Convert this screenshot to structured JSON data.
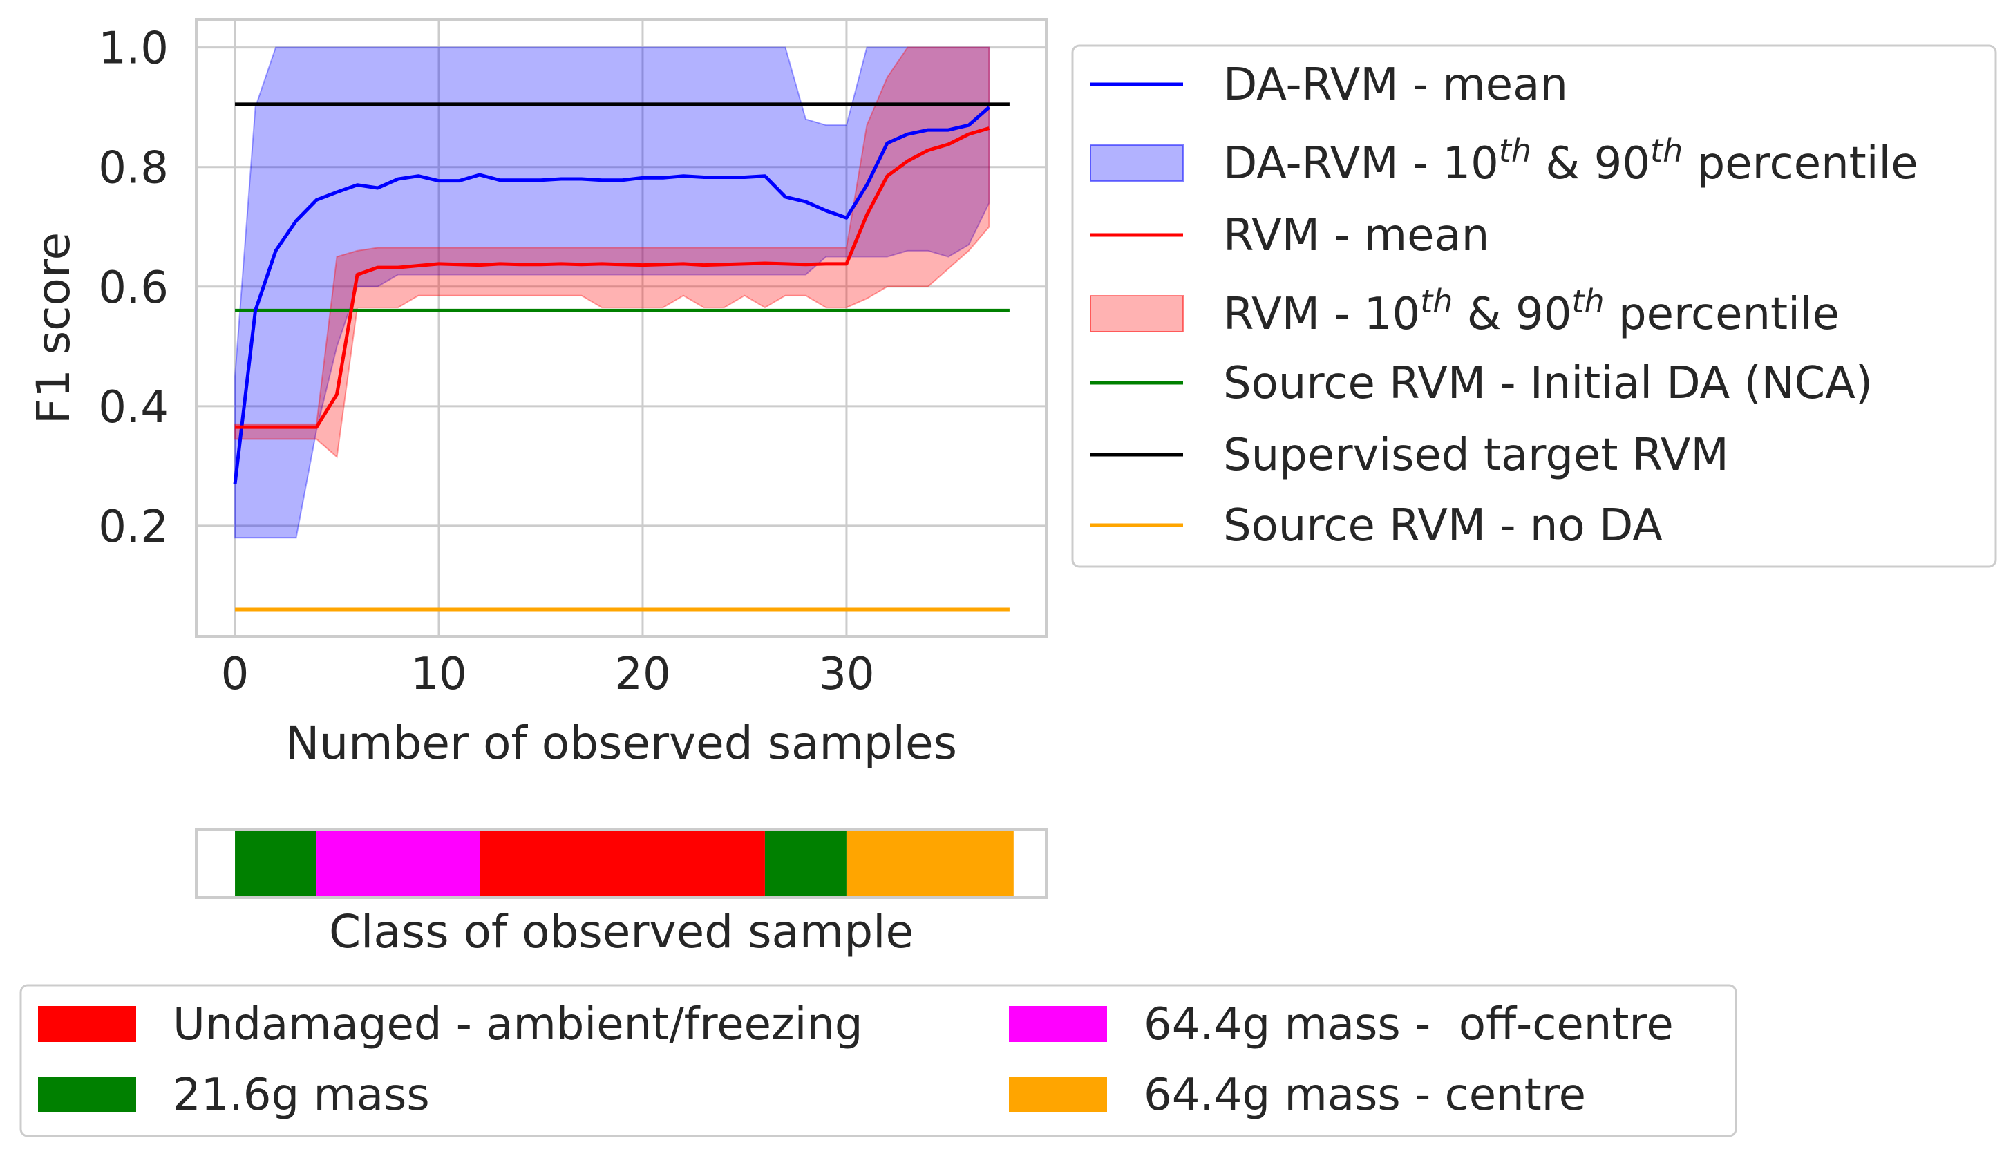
{
  "chart_data": {
    "type": "line",
    "xlabel": "Number of observed samples",
    "ylabel": "F1 score",
    "xlim": [
      -1.9,
      39.8
    ],
    "ylim": [
      0.015,
      1.047
    ],
    "x_ticks": [
      0,
      10,
      20,
      30
    ],
    "y_ticks": [
      0.2,
      0.4,
      0.6,
      0.8,
      1.0
    ],
    "x_tick_labels": [
      "0",
      "10",
      "20",
      "30"
    ],
    "y_tick_labels": [
      "0.2",
      "0.4",
      "0.6",
      "0.8",
      "1.0"
    ],
    "grid": true,
    "legend_position": "outside-right",
    "series": [
      {
        "name": "DA-RVM - mean",
        "kind": "line",
        "color": "#0000ff",
        "x": [
          0,
          1,
          2,
          3,
          4,
          5,
          6,
          7,
          8,
          9,
          10,
          11,
          12,
          13,
          14,
          15,
          16,
          17,
          18,
          19,
          20,
          21,
          22,
          23,
          24,
          25,
          26,
          27,
          28,
          29,
          30,
          31,
          32,
          33,
          34,
          35,
          36,
          37
        ],
        "y": [
          0.27,
          0.56,
          0.66,
          0.71,
          0.745,
          0.758,
          0.77,
          0.765,
          0.78,
          0.785,
          0.777,
          0.777,
          0.787,
          0.778,
          0.778,
          0.778,
          0.78,
          0.78,
          0.778,
          0.778,
          0.782,
          0.782,
          0.785,
          0.783,
          0.783,
          0.783,
          0.785,
          0.75,
          0.742,
          0.727,
          0.715,
          0.77,
          0.84,
          0.855,
          0.862,
          0.862,
          0.87,
          0.9
        ]
      },
      {
        "name": "DA-RVM - 10th & 90th percentile",
        "legend_label_parts": [
          "DA-RVM - 10",
          "th",
          " & 90",
          "th",
          " percentile"
        ],
        "kind": "band",
        "color": "#0000ff",
        "x": [
          0,
          1,
          2,
          3,
          4,
          5,
          6,
          7,
          8,
          9,
          10,
          11,
          12,
          13,
          14,
          15,
          16,
          17,
          18,
          19,
          20,
          21,
          22,
          23,
          24,
          25,
          26,
          27,
          28,
          29,
          30,
          31,
          32,
          33,
          34,
          35,
          36,
          37
        ],
        "lower": [
          0.18,
          0.18,
          0.18,
          0.18,
          0.36,
          0.5,
          0.6,
          0.6,
          0.62,
          0.62,
          0.62,
          0.62,
          0.62,
          0.62,
          0.62,
          0.62,
          0.62,
          0.62,
          0.62,
          0.62,
          0.62,
          0.62,
          0.62,
          0.62,
          0.62,
          0.62,
          0.62,
          0.62,
          0.62,
          0.65,
          0.65,
          0.65,
          0.65,
          0.66,
          0.66,
          0.65,
          0.67,
          0.74
        ],
        "upper": [
          0.45,
          0.9,
          1.0,
          1.0,
          1.0,
          1.0,
          1.0,
          1.0,
          1.0,
          1.0,
          1.0,
          1.0,
          1.0,
          1.0,
          1.0,
          1.0,
          1.0,
          1.0,
          1.0,
          1.0,
          1.0,
          1.0,
          1.0,
          1.0,
          1.0,
          1.0,
          1.0,
          1.0,
          0.88,
          0.87,
          0.87,
          1.0,
          1.0,
          1.0,
          1.0,
          1.0,
          1.0,
          1.0
        ]
      },
      {
        "name": "RVM - mean",
        "kind": "line",
        "color": "#ff0000",
        "x": [
          0,
          1,
          2,
          3,
          4,
          5,
          6,
          7,
          8,
          9,
          10,
          11,
          12,
          13,
          14,
          15,
          16,
          17,
          18,
          19,
          20,
          21,
          22,
          23,
          24,
          25,
          26,
          27,
          28,
          29,
          30,
          31,
          32,
          33,
          34,
          35,
          36,
          37
        ],
        "y": [
          0.365,
          0.365,
          0.365,
          0.365,
          0.365,
          0.42,
          0.62,
          0.632,
          0.632,
          0.635,
          0.638,
          0.637,
          0.636,
          0.638,
          0.637,
          0.637,
          0.638,
          0.637,
          0.638,
          0.637,
          0.636,
          0.637,
          0.638,
          0.636,
          0.637,
          0.638,
          0.639,
          0.638,
          0.637,
          0.638,
          0.638,
          0.72,
          0.785,
          0.81,
          0.828,
          0.838,
          0.855,
          0.865
        ]
      },
      {
        "name": "RVM - 10th & 90th percentile",
        "legend_label_parts": [
          "RVM - 10",
          "th",
          " & 90",
          "th",
          " percentile"
        ],
        "kind": "band",
        "color": "#ff0000",
        "x": [
          0,
          1,
          2,
          3,
          4,
          5,
          6,
          7,
          8,
          9,
          10,
          11,
          12,
          13,
          14,
          15,
          16,
          17,
          18,
          19,
          20,
          21,
          22,
          23,
          24,
          25,
          26,
          27,
          28,
          29,
          30,
          31,
          32,
          33,
          34,
          35,
          36,
          37
        ],
        "lower": [
          0.345,
          0.345,
          0.345,
          0.345,
          0.345,
          0.315,
          0.565,
          0.565,
          0.565,
          0.585,
          0.585,
          0.585,
          0.585,
          0.585,
          0.585,
          0.585,
          0.585,
          0.585,
          0.565,
          0.565,
          0.565,
          0.565,
          0.585,
          0.565,
          0.565,
          0.585,
          0.565,
          0.585,
          0.585,
          0.565,
          0.565,
          0.58,
          0.6,
          0.6,
          0.6,
          0.63,
          0.66,
          0.7
        ],
        "upper": [
          0.37,
          0.37,
          0.37,
          0.37,
          0.37,
          0.65,
          0.66,
          0.665,
          0.665,
          0.665,
          0.665,
          0.665,
          0.665,
          0.665,
          0.665,
          0.665,
          0.665,
          0.665,
          0.665,
          0.665,
          0.665,
          0.665,
          0.665,
          0.665,
          0.665,
          0.665,
          0.665,
          0.665,
          0.665,
          0.665,
          0.665,
          0.87,
          0.95,
          1.0,
          1.0,
          1.0,
          1.0,
          1.0
        ]
      },
      {
        "name": "Source RVM - Initial DA (NCA)",
        "kind": "hline",
        "color": "#008000",
        "x_range": [
          0,
          38
        ],
        "y": 0.56
      },
      {
        "name": "Supervised target RVM",
        "kind": "hline",
        "color": "#000000",
        "x_range": [
          0,
          38
        ],
        "y": 0.905
      },
      {
        "name": "Source RVM - no DA",
        "kind": "hline",
        "color": "#ffa500",
        "x_range": [
          0,
          38
        ],
        "y": 0.06
      }
    ],
    "class_strip": {
      "xlabel": "Class of observed sample",
      "segments": [
        {
          "class": "21.6g mass",
          "color": "#008000",
          "start": 0,
          "end": 4
        },
        {
          "class": "64.4g mass -  off-centre",
          "color": "#ff00ff",
          "start": 4,
          "end": 12
        },
        {
          "class": "Undamaged - ambient/freezing",
          "color": "#ff0000",
          "start": 12,
          "end": 26
        },
        {
          "class": "21.6g mass",
          "color": "#008000",
          "start": 26,
          "end": 30
        },
        {
          "class": "64.4g mass - centre",
          "color": "#ffa500",
          "start": 30,
          "end": 38.2
        }
      ]
    },
    "class_legend": [
      {
        "label": "Undamaged - ambient/freezing",
        "color": "#ff0000"
      },
      {
        "label": "21.6g mass",
        "color": "#008000"
      },
      {
        "label": "64.4g mass -  off-centre",
        "color": "#ff00ff"
      },
      {
        "label": "64.4g mass - centre",
        "color": "#ffa500"
      }
    ]
  }
}
